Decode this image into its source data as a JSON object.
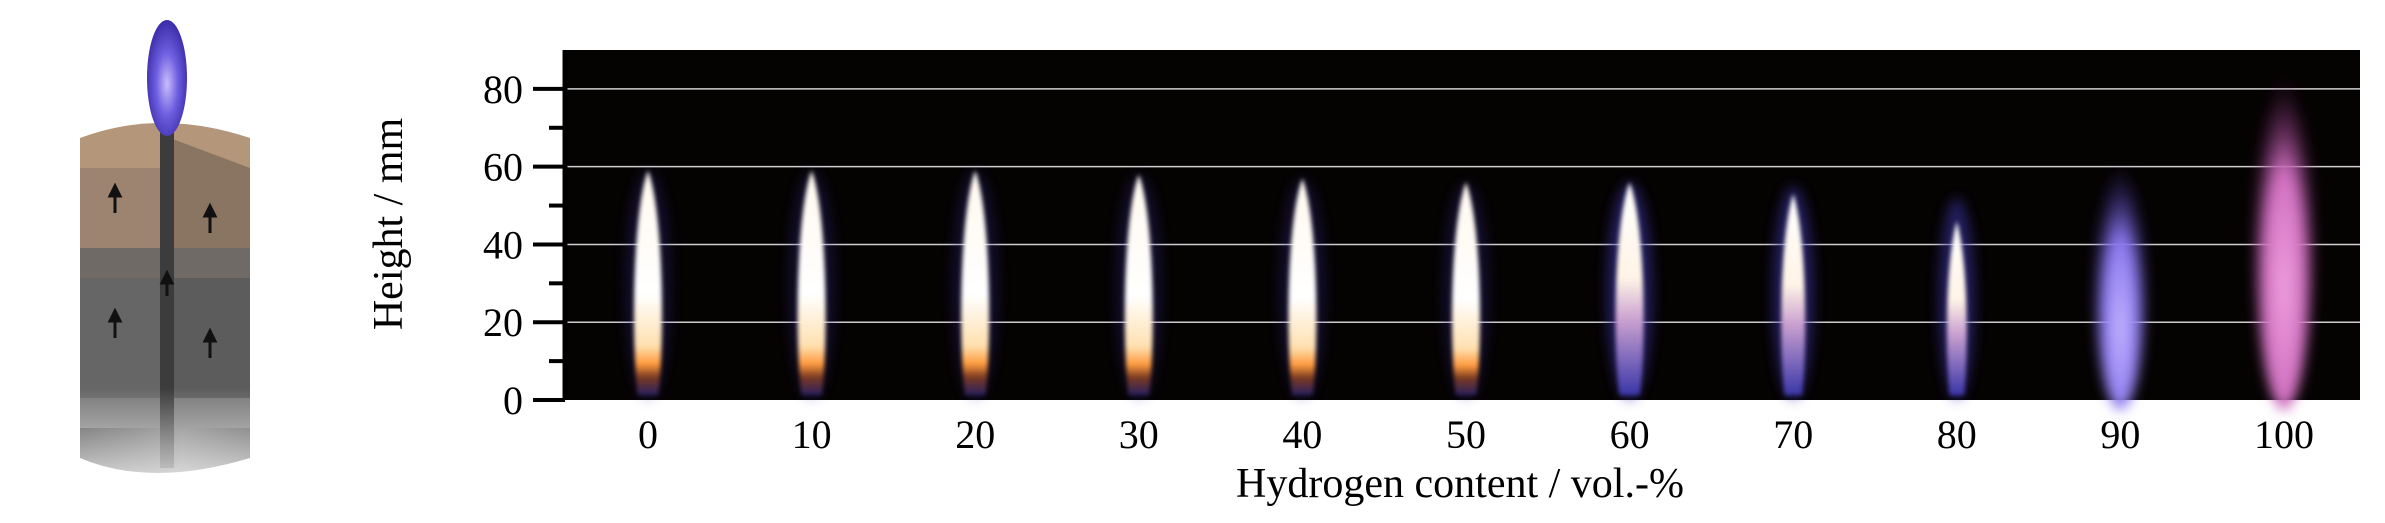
{
  "chart_data": {
    "type": "image-series",
    "xlabel": "Hydrogen content / vol.-%",
    "ylabel": "Height / mm",
    "ylim": [
      0,
      90
    ],
    "yticks": [
      0,
      20,
      40,
      60,
      80
    ],
    "grid": "horizontal lines at major y ticks",
    "x": [
      0,
      10,
      20,
      30,
      40,
      50,
      60,
      70,
      80,
      90,
      100
    ],
    "series": [
      {
        "luminous_flame_height": [
          59,
          59,
          59,
          58,
          57,
          56,
          56,
          53,
          46,
          0,
          0
        ],
        "visible_flame_height": [
          59,
          59,
          59,
          58,
          57,
          56,
          56,
          55,
          52,
          70,
          90
        ]
      }
    ],
    "colors": {
      "background": "#050202",
      "luminous": "#fff6e8",
      "soot_band": "#ffb060",
      "blue": "#5a5ae6",
      "violet": "#a890ff",
      "pink": "#e678cc",
      "grid": "#cfcfcf"
    }
  }
}
